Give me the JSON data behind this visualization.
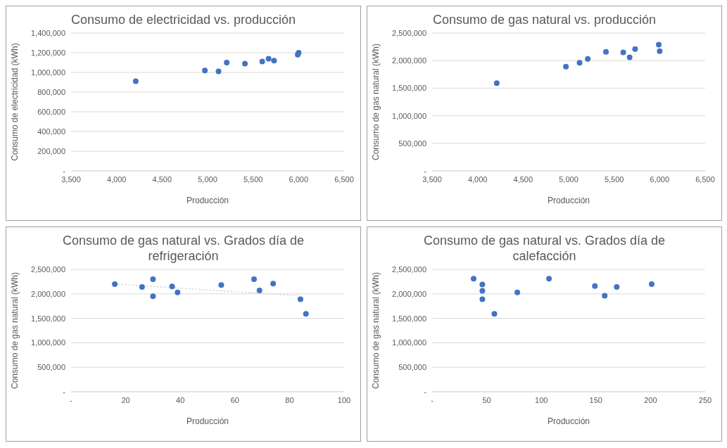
{
  "chart_data": [
    {
      "type": "scatter",
      "title": "Consumo de electricidad vs. producción",
      "xlabel": "Producción",
      "ylabel": "Consumo de electricidad (kWh)",
      "marker": "circle",
      "grid": "y",
      "xlim": [
        3500,
        6500
      ],
      "xticks": [
        {
          "value": 3500,
          "label": "3,500"
        },
        {
          "value": 4000,
          "label": "4,000"
        },
        {
          "value": 4500,
          "label": "4,500"
        },
        {
          "value": 5000,
          "label": "5,000"
        },
        {
          "value": 5500,
          "label": "5,500"
        },
        {
          "value": 6000,
          "label": "6,000"
        },
        {
          "value": 6500,
          "label": "6,500"
        }
      ],
      "ylim": [
        0,
        1400000
      ],
      "yticks": [
        {
          "value": 0,
          "label": "-"
        },
        {
          "value": 200000,
          "label": "200,000"
        },
        {
          "value": 400000,
          "label": "400,000"
        },
        {
          "value": 600000,
          "label": "600,000"
        },
        {
          "value": 800000,
          "label": "800,000"
        },
        {
          "value": 1000000,
          "label": "1,000,000"
        },
        {
          "value": 1200000,
          "label": "1,200,000"
        },
        {
          "value": 1400000,
          "label": "1,400,000"
        }
      ],
      "series": [
        {
          "color": "#4472c4",
          "x": [
            4210,
            4970,
            5120,
            5210,
            5410,
            5600,
            5670,
            5730,
            5990,
            6000
          ],
          "values": [
            910000,
            1020000,
            1010000,
            1100000,
            1090000,
            1110000,
            1140000,
            1120000,
            1180000,
            1200000
          ]
        }
      ]
    },
    {
      "type": "scatter",
      "title": "Consumo de gas natural vs. producción",
      "xlabel": "Producción",
      "ylabel": "Consumo de gas natural (kWh)",
      "marker": "circle",
      "grid": "y",
      "xlim": [
        3500,
        6500
      ],
      "xticks": [
        {
          "value": 3500,
          "label": "3,500"
        },
        {
          "value": 4000,
          "label": "4,000"
        },
        {
          "value": 4500,
          "label": "4,500"
        },
        {
          "value": 5000,
          "label": "5,000"
        },
        {
          "value": 5500,
          "label": "5,500"
        },
        {
          "value": 6000,
          "label": "6,000"
        },
        {
          "value": 6500,
          "label": "6,500"
        }
      ],
      "ylim": [
        0,
        2500000
      ],
      "yticks": [
        {
          "value": 0,
          "label": "-"
        },
        {
          "value": 500000,
          "label": "500,000"
        },
        {
          "value": 1000000,
          "label": "1,000,000"
        },
        {
          "value": 1500000,
          "label": "1,500,000"
        },
        {
          "value": 2000000,
          "label": "2,000,000"
        },
        {
          "value": 2500000,
          "label": "2,500,000"
        }
      ],
      "series": [
        {
          "color": "#4472c4",
          "x": [
            4210,
            4970,
            5120,
            5210,
            5410,
            5600,
            5670,
            5730,
            5990,
            6000
          ],
          "values": [
            1590000,
            1890000,
            1960000,
            2030000,
            2160000,
            2150000,
            2060000,
            2210000,
            2290000,
            2170000
          ]
        }
      ]
    },
    {
      "type": "scatter",
      "title": "Consumo de gas natural vs. Grados día de refrigeración",
      "xlabel": "Producción",
      "ylabel": "Consumo de gas natural (kWh)",
      "marker": "circle",
      "grid": "y",
      "xlim": [
        0,
        100
      ],
      "xticks": [
        {
          "value": 0,
          "label": "-"
        },
        20,
        40,
        60,
        80,
        100
      ],
      "ylim": [
        0,
        2500000
      ],
      "yticks": [
        {
          "value": 0,
          "label": "-"
        },
        {
          "value": 500000,
          "label": "500,000"
        },
        {
          "value": 1000000,
          "label": "1,000,000"
        },
        {
          "value": 1500000,
          "label": "1,500,000"
        },
        {
          "value": 2000000,
          "label": "2,000,000"
        },
        {
          "value": 2500000,
          "label": "2,500,000"
        }
      ],
      "series": [
        {
          "type": "line",
          "color": "#d0d0d0",
          "line_style": "dotted",
          "marker": "none",
          "x": [
            16,
            84
          ],
          "values": [
            2200000,
            1960000
          ]
        },
        {
          "color": "#4472c4",
          "x": [
            16,
            26,
            30,
            30,
            37,
            39,
            55,
            67,
            69,
            74,
            84,
            86
          ],
          "values": [
            2200000,
            2140000,
            2300000,
            1950000,
            2150000,
            2030000,
            2180000,
            2300000,
            2070000,
            2210000,
            1890000,
            1590000
          ]
        }
      ]
    },
    {
      "type": "scatter",
      "title": "Consumo de gas natural vs. Grados día de calefacción",
      "xlabel": "Producción",
      "ylabel": "Consumo de gas natural (kWh)",
      "marker": "circle",
      "grid": "y",
      "xlim": [
        0,
        250
      ],
      "xticks": [
        {
          "value": 0,
          "label": "-"
        },
        50,
        100,
        150,
        200,
        250
      ],
      "ylim": [
        0,
        2500000
      ],
      "yticks": [
        {
          "value": 0,
          "label": "-"
        },
        {
          "value": 500000,
          "label": "500,000"
        },
        {
          "value": 1000000,
          "label": "1,000,000"
        },
        {
          "value": 1500000,
          "label": "1,500,000"
        },
        {
          "value": 2000000,
          "label": "2,000,000"
        },
        {
          "value": 2500000,
          "label": "2,500,000"
        }
      ],
      "series": [
        {
          "color": "#4472c4",
          "x": [
            38,
            46,
            46,
            46,
            57,
            78,
            107,
            149,
            158,
            169,
            201
          ],
          "values": [
            2310000,
            2190000,
            2060000,
            1890000,
            1590000,
            2030000,
            2310000,
            2160000,
            1960000,
            2140000,
            2200000
          ]
        }
      ]
    }
  ]
}
